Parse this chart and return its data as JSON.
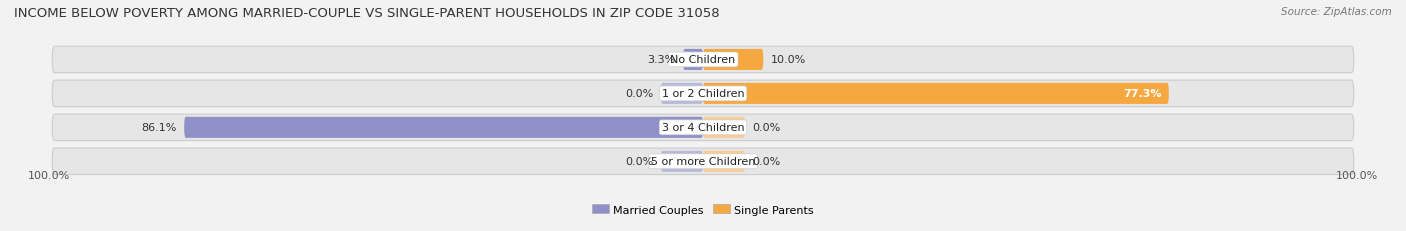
{
  "title": "INCOME BELOW POVERTY AMONG MARRIED-COUPLE VS SINGLE-PARENT HOUSEHOLDS IN ZIP CODE 31058",
  "source": "Source: ZipAtlas.com",
  "categories": [
    "No Children",
    "1 or 2 Children",
    "3 or 4 Children",
    "5 or more Children"
  ],
  "married_values": [
    3.3,
    0.0,
    86.1,
    0.0
  ],
  "single_values": [
    10.0,
    77.3,
    0.0,
    0.0
  ],
  "married_color": "#9090c8",
  "single_color": "#f5a840",
  "single_color_light": "#f8cc95",
  "married_color_light": "#b8b8db",
  "bar_bg_color": "#dcdcdc",
  "row_bg_color": "#e6e6e6",
  "row_border_color": "#cccccc",
  "bg_color": "#f2f2f2",
  "max_value": 100.0,
  "legend_married": "Married Couples",
  "legend_single": "Single Parents",
  "title_fontsize": 9.5,
  "source_fontsize": 7.5,
  "axis_label_left": "100.0%",
  "axis_label_right": "100.0%",
  "stub_val": 7.0
}
